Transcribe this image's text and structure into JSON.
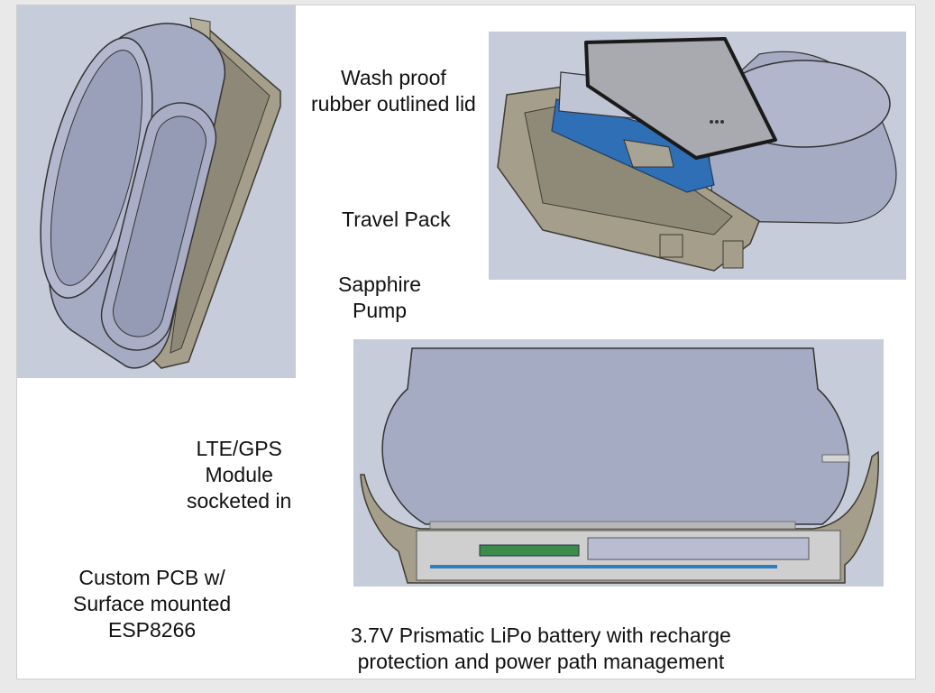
{
  "labels": {
    "lid": [
      "Wash proof",
      "rubber outlined lid"
    ],
    "travel_pack": [
      "Travel Pack"
    ],
    "pump": [
      "Sapphire",
      "Pump"
    ],
    "module": [
      "LTE/GPS",
      "Module",
      "socketed in"
    ],
    "pcb": [
      "Custom PCB w/",
      "Surface mounted",
      "ESP8266"
    ],
    "battery": [
      "3.7V Prismatic LiPo battery with recharge",
      "protection and power path management"
    ]
  },
  "colors": {
    "panel_bg": "#c5cad8",
    "shell": "#a49e8a",
    "shell_dark": "#7d7868",
    "pump_body": "#a4a9c2",
    "pcb_blue": "#2f7ec0"
  }
}
